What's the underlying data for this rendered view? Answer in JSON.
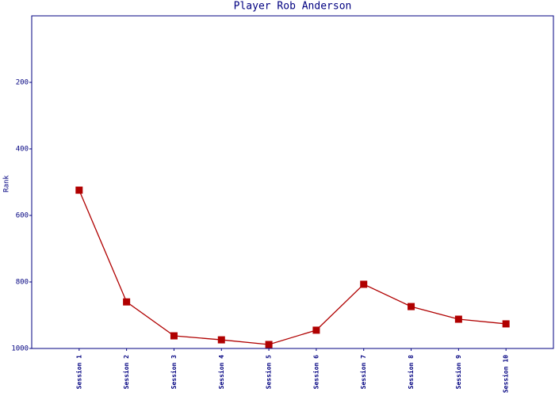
{
  "chart_data": {
    "type": "line",
    "title": "Player Rob Anderson",
    "y_label": "Rank",
    "categories": [
      "Session 1",
      "Session 2",
      "Session 3",
      "Session 4",
      "Session 5",
      "Session 6",
      "Session 7",
      "Session 8",
      "Session 9",
      "Session 10"
    ],
    "series": [
      {
        "name": "Rank",
        "color": "#b00000",
        "values": [
          524,
          860,
          962,
          974,
          988,
          945,
          807,
          874,
          912,
          926
        ]
      }
    ],
    "ylim": [
      1000,
      0
    ],
    "yticks": [
      200,
      400,
      600,
      800,
      1000
    ],
    "grid": false
  }
}
